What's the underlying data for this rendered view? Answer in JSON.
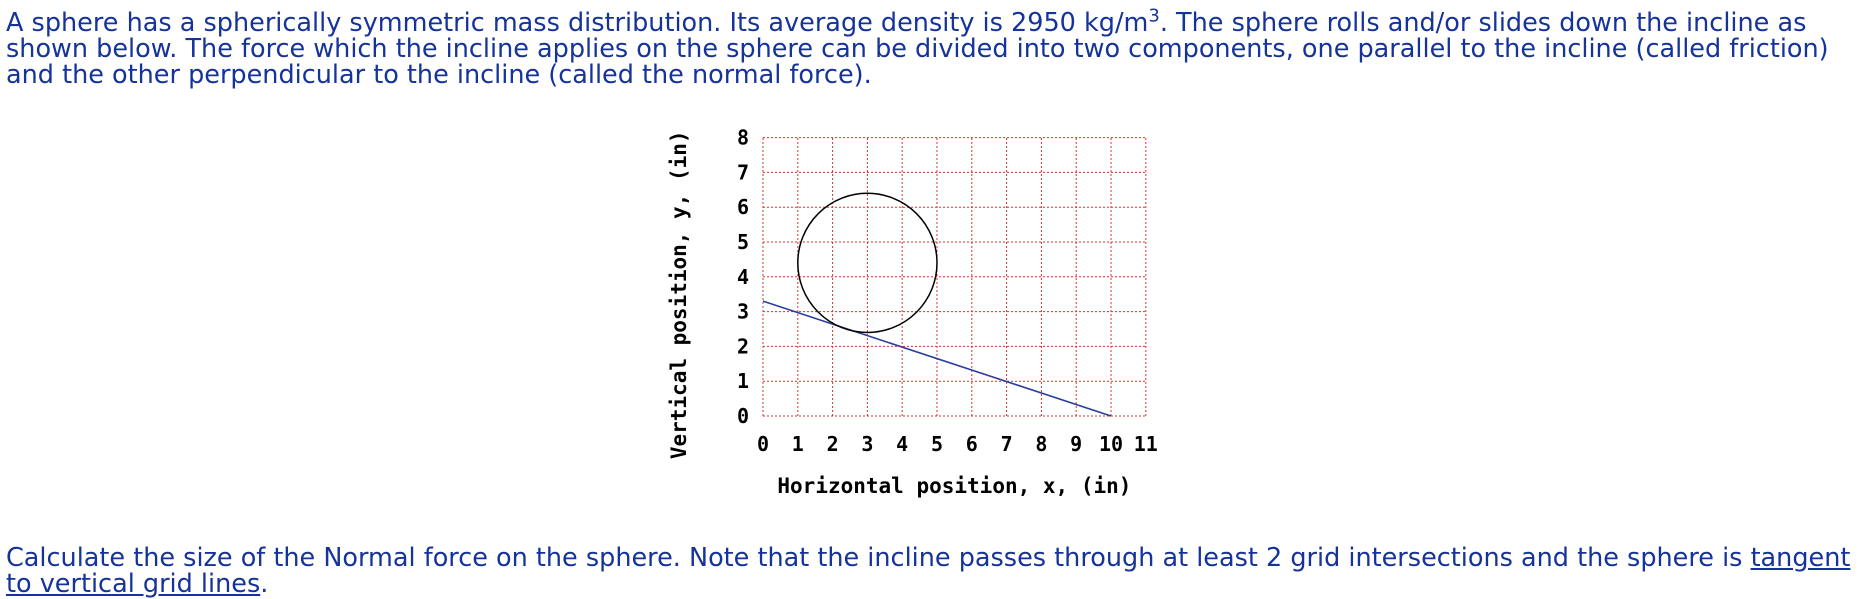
{
  "intro": {
    "part1": "A sphere has a spherically symmetric mass distribution. Its average density is 2950 kg/m",
    "superscript": "3",
    "part2": ". The sphere rolls and/or slides down the incline as shown below. The force which the incline applies on the sphere can be divided into two components, one parallel to the incline (called friction) and the other perpendicular to the incline (called the normal force)."
  },
  "question": {
    "part1": "Calculate the size of the Normal force on the sphere. Note that the incline passes through at least 2 grid intersections and the sphere is ",
    "underlined": "tangent to vertical grid lines",
    "part2": "."
  },
  "chart_data": {
    "type": "diagram",
    "xlabel": "Horizontal position, x, (in)",
    "ylabel": "Vertical position, y, (in)",
    "xlim": [
      0,
      11
    ],
    "ylim": [
      0,
      8
    ],
    "x_ticks": [
      "0",
      "1",
      "2",
      "3",
      "4",
      "5",
      "6",
      "7",
      "8",
      "9",
      "10",
      "11"
    ],
    "y_ticks": [
      "0",
      "1",
      "2",
      "3",
      "4",
      "5",
      "6",
      "7",
      "8"
    ],
    "grid": true,
    "grid_color": "#e0302a",
    "incline": {
      "x1": 0,
      "y1": 3.3,
      "x2": 10,
      "y2": 0,
      "color": "#2a3f9c"
    },
    "sphere": {
      "cx": 3,
      "cy": 4.4,
      "r": 2,
      "color": "#000000"
    }
  }
}
